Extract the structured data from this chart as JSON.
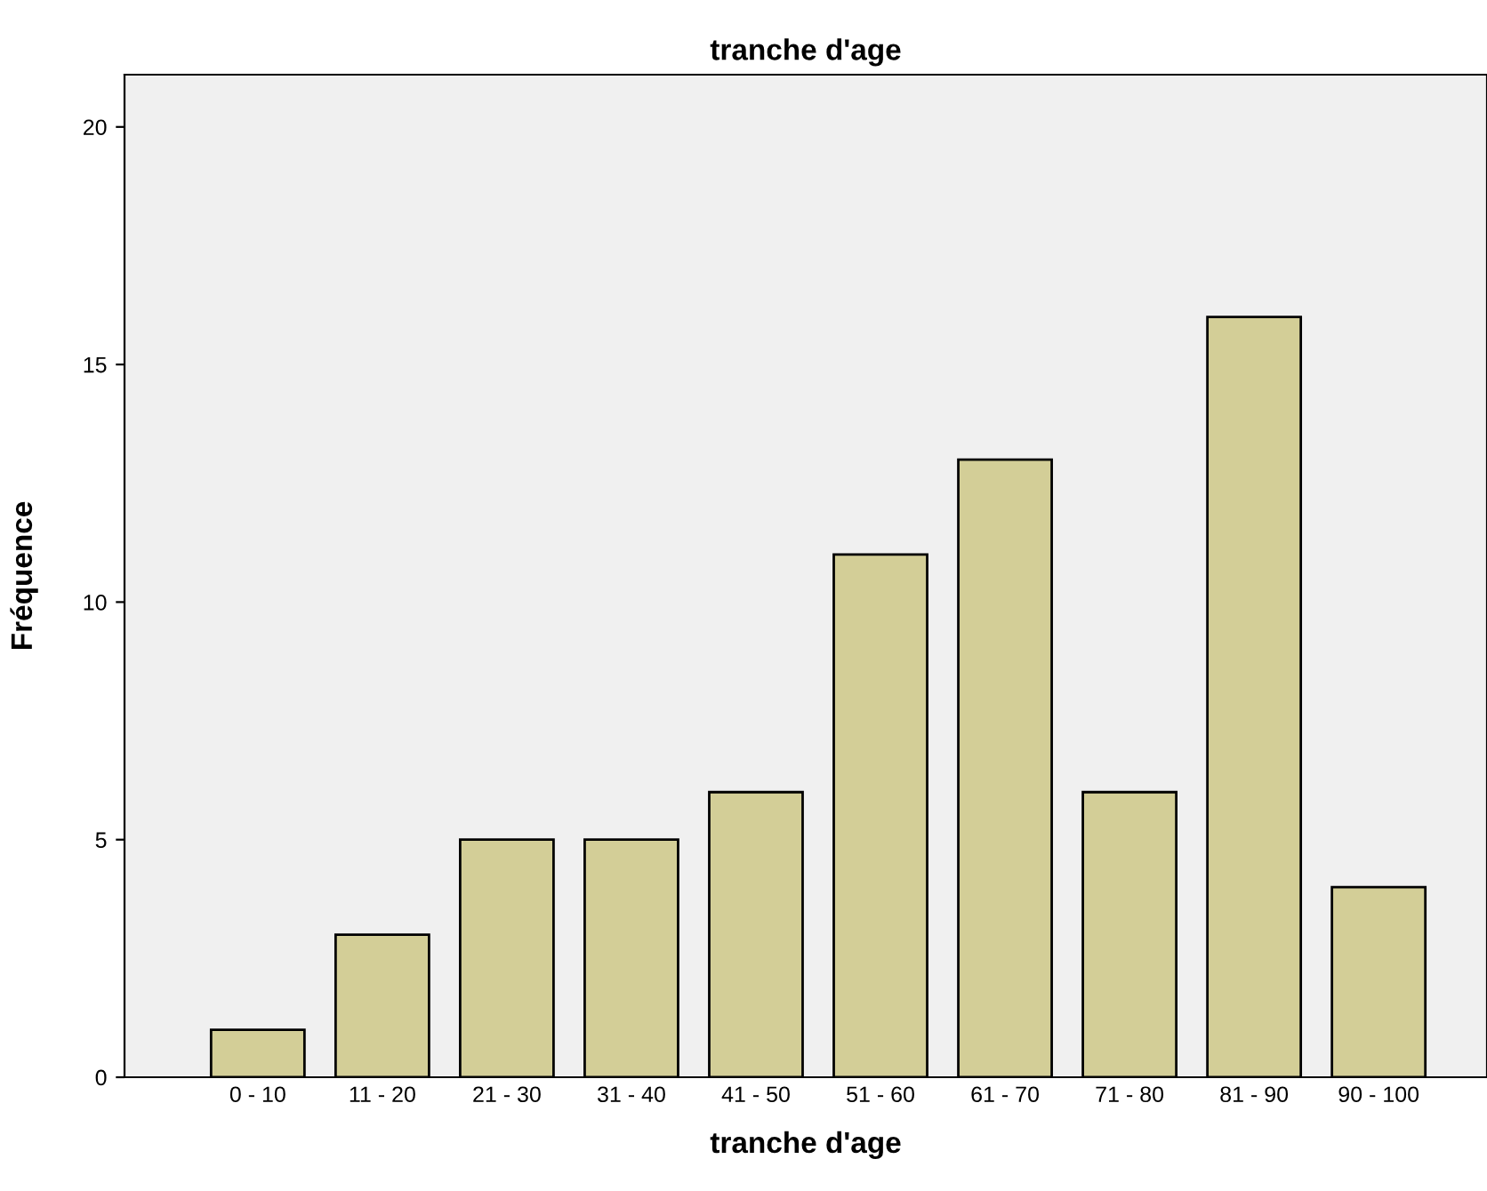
{
  "chart_data": {
    "type": "bar",
    "title": "tranche d'age",
    "xlabel": "tranche d'age",
    "ylabel": "Fréquence",
    "categories": [
      "0 - 10",
      "11 - 20",
      "21 - 30",
      "31 - 40",
      "41 - 50",
      "51 - 60",
      "61 - 70",
      "71 - 80",
      "81 - 90",
      "90 - 100"
    ],
    "values": [
      1,
      3,
      5,
      5,
      6,
      11,
      13,
      6,
      16,
      4
    ],
    "color": "#d3ce97",
    "ylim": [
      0,
      21.1
    ],
    "yticks": [
      0,
      5,
      10,
      15,
      20
    ],
    "grid": false,
    "legend": false
  }
}
